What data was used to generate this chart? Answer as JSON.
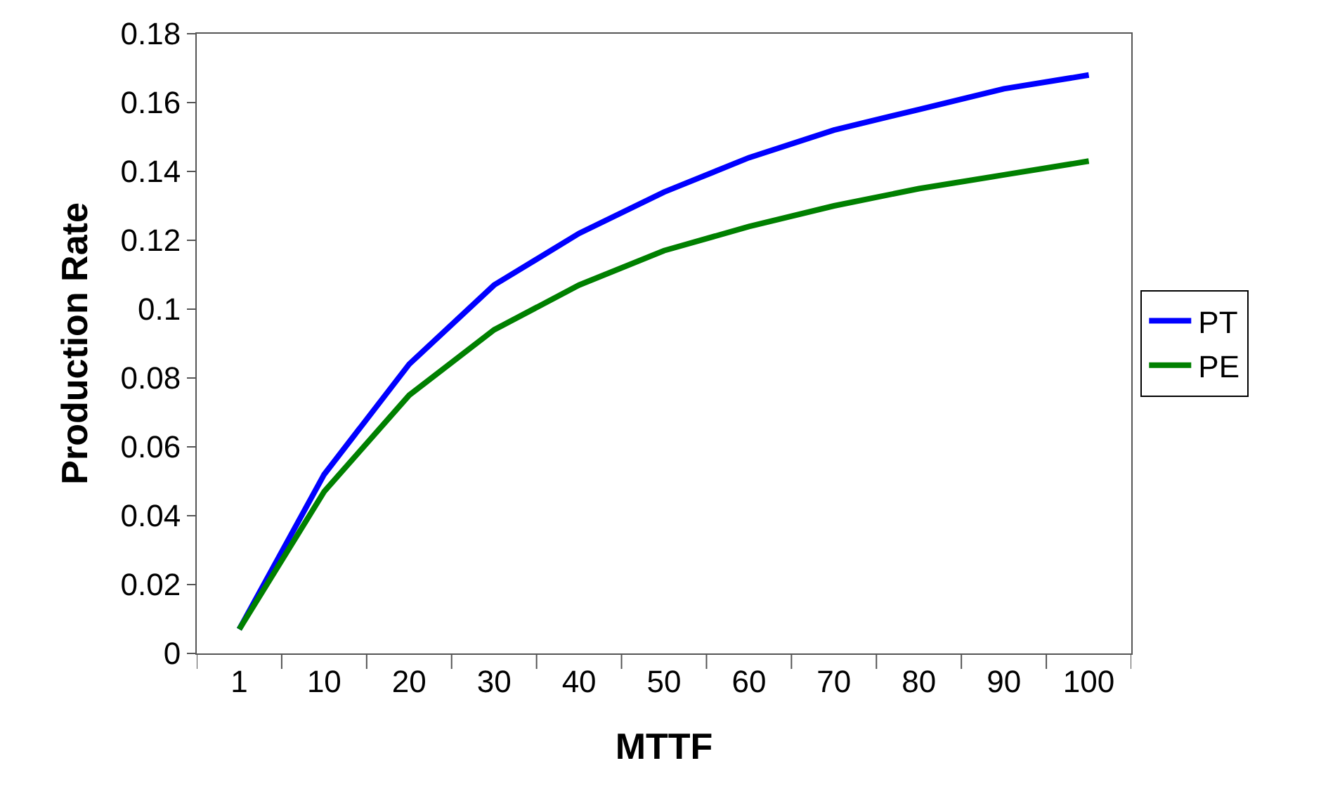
{
  "chart_data": {
    "type": "line",
    "xlabel": "MTTF",
    "ylabel": "Production Rate",
    "categories": [
      "1",
      "10",
      "20",
      "30",
      "40",
      "50",
      "60",
      "70",
      "80",
      "90",
      "100"
    ],
    "series": [
      {
        "name": "PT",
        "color": "#0000ff",
        "values": [
          0.007,
          0.052,
          0.084,
          0.107,
          0.122,
          0.134,
          0.144,
          0.152,
          0.158,
          0.164,
          0.168
        ]
      },
      {
        "name": "PE",
        "color": "#008000",
        "values": [
          0.007,
          0.047,
          0.075,
          0.094,
          0.107,
          0.117,
          0.124,
          0.13,
          0.135,
          0.139,
          0.143
        ]
      }
    ],
    "ylim": [
      0,
      0.18
    ],
    "yticks": [
      0,
      0.02,
      0.04,
      0.06,
      0.08,
      0.1,
      0.12,
      0.14,
      0.16,
      0.18
    ],
    "legend": "right",
    "marker": "none",
    "line_style": "solid"
  }
}
